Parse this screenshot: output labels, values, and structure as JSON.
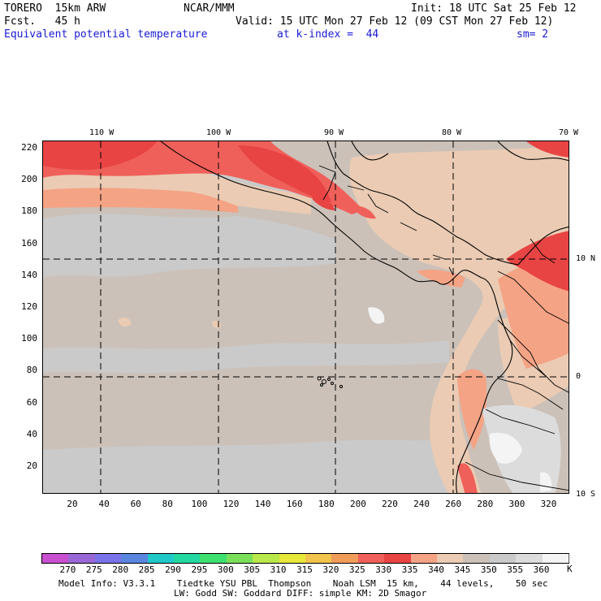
{
  "header": {
    "model": "TORERO",
    "resolution": "15km ARW",
    "org": "NCAR/MMM",
    "init": "Init: 18 UTC Sat 25 Feb 12",
    "fcst_label": "Fcst.",
    "fcst_value": "45 h",
    "valid": "Valid: 15 UTC Mon 27 Feb 12 (09 CST Mon 27 Feb 12)",
    "field": "Equivalent potential temperature",
    "level": "at k-index =  44",
    "smooth": "sm= 2"
  },
  "map": {
    "lon_labels": [
      "110 W",
      "100 W",
      "90 W",
      "80 W",
      "70 W"
    ],
    "lat_labels": [
      "10 N",
      "0",
      "10 S"
    ],
    "y_grid_labels": [
      "220",
      "200",
      "180",
      "160",
      "140",
      "120",
      "100",
      "80",
      "60",
      "40",
      "20"
    ],
    "x_grid_labels": [
      "20",
      "40",
      "60",
      "80",
      "100",
      "120",
      "140",
      "160",
      "180",
      "200",
      "220",
      "240",
      "260",
      "280",
      "300",
      "320"
    ]
  },
  "legend": {
    "labels": [
      "270",
      "275",
      "280",
      "285",
      "290",
      "295",
      "300",
      "305",
      "310",
      "315",
      "320",
      "325",
      "330",
      "335",
      "340",
      "345",
      "350",
      "355",
      "360"
    ],
    "unit": "K",
    "colors": [
      "#c84fd0",
      "#9a68d6",
      "#7a72e8",
      "#5a86e0",
      "#20c8c8",
      "#22d8a0",
      "#3ee070",
      "#7ae05a",
      "#b8e84a",
      "#e6e83a",
      "#f3c44c",
      "#f29c5a",
      "#f0605a",
      "#e84444",
      "#f5a385",
      "#ebcbb3",
      "#cbc1b9",
      "#cacaca",
      "#dcdcdc",
      "#f4f4f4"
    ]
  },
  "footer": {
    "line1": "Model Info: V3.3.1    Tiedtke YSU PBL  Thompson    Noah LSM  15 km,    44 levels,    50 sec",
    "line2": "LW: Godd SW: Goddard DIFF: simple KM: 2D Smagor"
  }
}
